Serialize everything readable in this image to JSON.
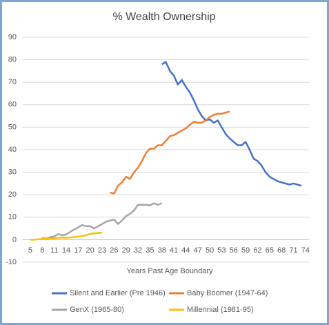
{
  "chart_data": {
    "type": "line",
    "title": "% Wealth Ownership",
    "x_label": "Years Past Age Boundary",
    "xlim": [
      3,
      75
    ],
    "xticks": [
      5,
      8,
      11,
      14,
      17,
      20,
      23,
      26,
      29,
      32,
      35,
      38,
      41,
      44,
      47,
      50,
      53,
      56,
      59,
      62,
      65,
      68,
      71,
      74
    ],
    "ylim": [
      -10,
      90
    ],
    "yticks": [
      -10,
      0,
      10,
      20,
      30,
      40,
      50,
      60,
      70,
      80,
      90
    ],
    "grid": true,
    "series": [
      {
        "name": "Silent and Earlier (Pre 1946)",
        "color": "#4472c4",
        "x": [
          38,
          39,
          40,
          41,
          42,
          43,
          44,
          45,
          46,
          47,
          48,
          49,
          50,
          51,
          52,
          53,
          54,
          55,
          56,
          57,
          58,
          59,
          60,
          61,
          62,
          63,
          64,
          65,
          66,
          67,
          68,
          69,
          70,
          71,
          72,
          73
        ],
        "values": [
          78,
          79,
          75,
          73,
          69,
          71,
          68,
          65.5,
          62,
          58,
          55,
          53,
          53.5,
          52,
          53,
          50,
          47,
          45,
          43.5,
          42,
          42,
          43.5,
          40,
          36,
          35,
          33,
          30,
          28,
          27,
          26,
          25.5,
          25,
          24.5,
          25,
          24.5,
          24
        ]
      },
      {
        "name": "Baby Boomer (1947-64)",
        "color": "#ed7d31",
        "x": [
          25,
          26,
          27,
          28,
          29,
          30,
          31,
          32,
          33,
          34,
          35,
          36,
          37,
          38,
          39,
          40,
          41,
          42,
          43,
          44,
          45,
          46,
          47,
          48,
          49,
          50,
          51,
          52,
          53,
          54,
          55
        ],
        "values": [
          21,
          20.5,
          24,
          25.5,
          28,
          27,
          30,
          32,
          35,
          38.5,
          40.5,
          40.5,
          42,
          42,
          44,
          46,
          46.5,
          47.5,
          48.5,
          49.5,
          51,
          52.5,
          52,
          52,
          53,
          54.5,
          55.5,
          56,
          56,
          56.5,
          57
        ]
      },
      {
        "name": "GenX (1965-80)",
        "color": "#a5a5a5",
        "x": [
          8,
          9,
          10,
          11,
          12,
          13,
          14,
          15,
          16,
          17,
          18,
          19,
          20,
          21,
          22,
          23,
          24,
          25,
          26,
          27,
          28,
          29,
          30,
          31,
          32,
          33,
          34,
          35,
          36,
          37,
          38
        ],
        "values": [
          0.8,
          0.5,
          1.2,
          1.5,
          2.5,
          2,
          2.3,
          3.5,
          4.5,
          5.5,
          6.5,
          6,
          6,
          5,
          6,
          7,
          8,
          8.5,
          9,
          7,
          8.5,
          10.5,
          11.5,
          13,
          15.5,
          15.5,
          15.5,
          15.3,
          16.2,
          15.5,
          16.2
        ]
      },
      {
        "name": "Millennial (1981-95)",
        "color": "#ffc000",
        "x": [
          5,
          6,
          7,
          8,
          9,
          10,
          11,
          12,
          13,
          14,
          15,
          16,
          17,
          18,
          19,
          20,
          21,
          22,
          23
        ],
        "values": [
          0,
          0,
          0.2,
          0.3,
          0.4,
          0.6,
          0.7,
          0.8,
          1,
          0.8,
          1,
          1.2,
          1.3,
          1.7,
          2,
          2.6,
          2.8,
          3,
          3.2
        ]
      }
    ]
  }
}
